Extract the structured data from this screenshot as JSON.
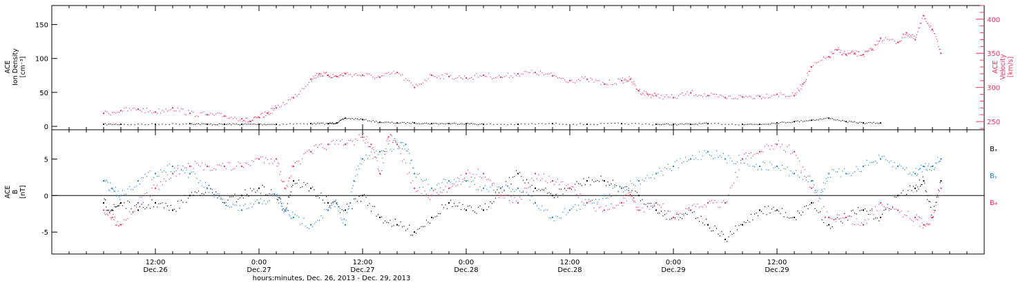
{
  "colors": {
    "black": "#000000",
    "blue": "#1a7fd8",
    "pink": "#e8305e",
    "frame": "#000000",
    "bg": "#ffffff"
  },
  "chart_data": [
    {
      "type": "scatter",
      "panel": "top",
      "left_axis": {
        "label_lines": [
          "ACE",
          "Ion Density",
          "[cm⁻³]"
        ],
        "ylim": [
          -5,
          178
        ],
        "ticks": [
          0,
          50,
          100,
          150
        ]
      },
      "right_axis": {
        "label_lines": [
          "ACE",
          "Velocity",
          "[km/s]"
        ],
        "ylim": [
          238,
          420
        ],
        "ticks": [
          250,
          300,
          350,
          400
        ]
      },
      "series": [
        {
          "key": "density",
          "axis": "left",
          "color": "black",
          "x": [
            6,
            8,
            12,
            16,
            18,
            20,
            22,
            24,
            26,
            30,
            32,
            33,
            34,
            36,
            38,
            40,
            42,
            44,
            46,
            48,
            50,
            54,
            58,
            62,
            66,
            70,
            72,
            74,
            76,
            80,
            82,
            84,
            86,
            88,
            90,
            92,
            94,
            96
          ],
          "y": [
            3,
            3,
            3,
            4,
            3,
            3,
            3,
            3,
            3,
            4,
            4,
            5,
            12,
            10,
            6,
            5,
            5,
            4,
            4,
            4,
            3,
            3,
            4,
            3,
            4,
            3,
            3,
            3,
            4,
            3,
            3,
            5,
            7,
            9,
            12,
            7,
            5,
            5
          ]
        },
        {
          "key": "velocity",
          "axis": "right",
          "color": "pink",
          "x": [
            6,
            8,
            10,
            12,
            14,
            16,
            18,
            20,
            22,
            23,
            24,
            25,
            26,
            28,
            30,
            31,
            32,
            33,
            34,
            36,
            38,
            40,
            42,
            44,
            46,
            48,
            50,
            52,
            54,
            56,
            58,
            60,
            62,
            64,
            66,
            67,
            68,
            69,
            70,
            72,
            74,
            76,
            78,
            80,
            82,
            84,
            86,
            87,
            88,
            90,
            91,
            92,
            93,
            94,
            95,
            96,
            98,
            99,
            100,
            101,
            102,
            103
          ],
          "y": [
            262,
            266,
            268,
            264,
            270,
            262,
            260,
            258,
            254,
            250,
            256,
            262,
            270,
            285,
            312,
            320,
            318,
            316,
            320,
            318,
            315,
            322,
            300,
            318,
            316,
            314,
            318,
            315,
            320,
            322,
            317,
            310,
            312,
            305,
            310,
            312,
            295,
            290,
            288,
            285,
            292,
            288,
            285,
            286,
            287,
            290,
            288,
            305,
            330,
            345,
            355,
            348,
            350,
            348,
            355,
            372,
            366,
            380,
            370,
            405,
            385,
            350
          ]
        }
      ]
    },
    {
      "type": "scatter",
      "panel": "bottom",
      "left_axis": {
        "label_lines": [
          "ACE",
          "B",
          "[nT]"
        ],
        "ylim": [
          -8,
          9
        ],
        "ticks": [
          -5,
          0,
          5
        ]
      },
      "legend": [
        "Bₓ",
        "Bᵧ",
        "B₄"
      ],
      "series": [
        {
          "key": "Bx",
          "name": "Bx",
          "color": "black",
          "x": [
            6,
            7,
            8,
            10,
            12,
            14,
            16,
            18,
            20,
            22,
            24,
            26,
            27,
            28,
            30,
            32,
            34,
            36,
            38,
            40,
            42,
            44,
            46,
            48,
            50,
            52,
            54,
            56,
            58,
            60,
            62,
            64,
            66,
            68,
            70,
            72,
            74,
            76,
            78,
            80,
            82,
            84,
            86,
            88,
            90,
            92,
            94,
            96,
            98,
            100,
            101,
            102,
            103
          ],
          "y": [
            -1,
            -2,
            -1,
            -2,
            -1,
            -2,
            0,
            1,
            -1,
            0,
            1,
            0,
            -2,
            2,
            1,
            -1,
            -2,
            0,
            -3,
            -4,
            -5,
            -3,
            -1,
            -2,
            -2,
            1,
            3,
            1,
            0,
            1,
            2,
            2,
            1,
            0,
            -2,
            -3,
            -2,
            -4,
            -6,
            -4,
            -2,
            -2,
            -3,
            -1,
            -4,
            -3,
            -2,
            -3,
            0,
            1,
            2,
            -3,
            2
          ]
        },
        {
          "key": "By",
          "name": "By",
          "color": "blue",
          "x": [
            6,
            7,
            8,
            10,
            12,
            14,
            16,
            18,
            20,
            22,
            24,
            26,
            27,
            28,
            30,
            32,
            33,
            34,
            35,
            36,
            38,
            40,
            41,
            42,
            44,
            46,
            48,
            50,
            52,
            54,
            56,
            58,
            60,
            62,
            64,
            66,
            68,
            70,
            72,
            74,
            76,
            78,
            80,
            82,
            84,
            86,
            88,
            89,
            90,
            92,
            94,
            96,
            98,
            100,
            101,
            102,
            103
          ],
          "y": [
            2,
            1,
            0,
            2,
            3,
            4,
            3,
            1,
            -1,
            -2,
            -1,
            0,
            -2,
            -3,
            -4,
            -2,
            -1,
            -4,
            2,
            5,
            6,
            7,
            7,
            3,
            1,
            2,
            2,
            1,
            1,
            1,
            -1,
            -3,
            -2,
            -1,
            0,
            1,
            2,
            3,
            4,
            5,
            6,
            5,
            5,
            4,
            4,
            3,
            2,
            0,
            3,
            3,
            4,
            5,
            4,
            3,
            4,
            4,
            5
          ]
        },
        {
          "key": "Bz",
          "name": "Bz",
          "color": "pink",
          "x": [
            6,
            7,
            8,
            10,
            12,
            14,
            16,
            18,
            20,
            22,
            24,
            26,
            27,
            28,
            30,
            32,
            34,
            36,
            37,
            38,
            39,
            40,
            42,
            44,
            46,
            48,
            50,
            52,
            54,
            56,
            58,
            60,
            62,
            64,
            66,
            67,
            68,
            70,
            72,
            74,
            76,
            78,
            80,
            82,
            84,
            86,
            88,
            90,
            92,
            94,
            96,
            98,
            100,
            101,
            102,
            103
          ],
          "y": [
            -2,
            -3,
            -4,
            -1,
            1,
            3,
            4,
            4,
            4,
            4,
            5,
            5,
            1,
            4,
            6,
            7,
            7,
            8,
            7,
            3,
            8,
            7,
            1,
            0,
            1,
            3,
            3,
            0,
            -1,
            3,
            2,
            1,
            -1,
            -2,
            -1,
            0,
            -2,
            -1,
            -3,
            -2,
            -1,
            -1,
            5,
            6,
            7,
            6,
            1,
            -3,
            -3,
            -4,
            -1,
            -2,
            -3,
            -4,
            -3,
            1
          ]
        }
      ]
    }
  ],
  "x_axis": {
    "xlim": [
      0,
      108
    ],
    "ticks": [
      {
        "hours": 12,
        "time": "12:00",
        "day": "Dec.26"
      },
      {
        "hours": 24,
        "time": "0:00",
        "day": "Dec.27"
      },
      {
        "hours": 36,
        "time": "12:00",
        "day": "Dec.27"
      },
      {
        "hours": 48,
        "time": "0:00",
        "day": "Dec.28"
      },
      {
        "hours": 60,
        "time": "12:00",
        "day": "Dec.28"
      },
      {
        "hours": 72,
        "time": "0:00",
        "day": "Dec.29"
      },
      {
        "hours": 84,
        "time": "12:00",
        "day": "Dec.29"
      }
    ],
    "label": "hours:minutes, Dec. 26, 2013 - Dec. 29, 2013"
  }
}
